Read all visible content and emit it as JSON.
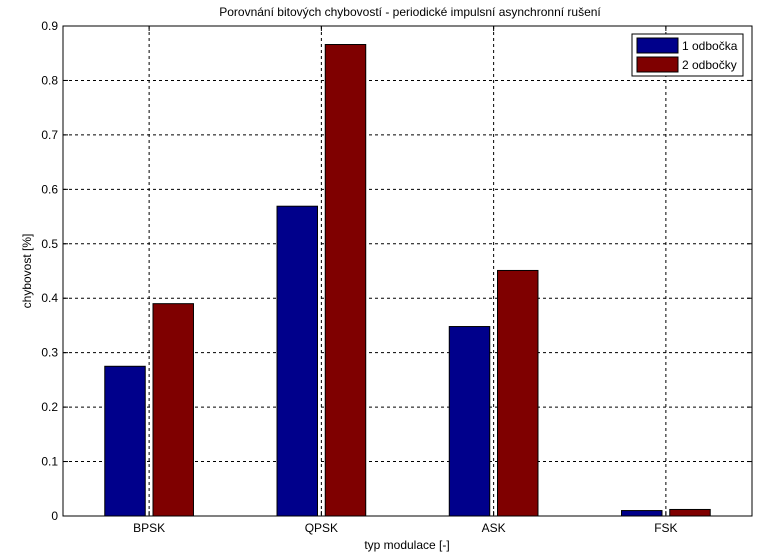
{
  "chart_data": {
    "type": "bar",
    "title": "Porovnání bitových chybovostí - periodické impulsní asynchronní rušení",
    "xlabel": "typ modulace [-]",
    "ylabel": "chybovost [%]",
    "categories": [
      "BPSK",
      "QPSK",
      "ASK",
      "FSK"
    ],
    "series": [
      {
        "name": "1 odbočka",
        "color": "#00008b",
        "values": [
          0.275,
          0.569,
          0.348,
          0.01
        ]
      },
      {
        "name": "2 odbočky",
        "color": "#7f0000",
        "values": [
          0.39,
          0.866,
          0.451,
          0.012
        ]
      }
    ],
    "ylim": [
      0,
      0.9
    ],
    "yticks": [
      "0",
      "0.1",
      "0.2",
      "0.3",
      "0.4",
      "0.5",
      "0.6",
      "0.7",
      "0.8",
      "0.9"
    ],
    "grid": true,
    "legend_position": "top-right"
  }
}
